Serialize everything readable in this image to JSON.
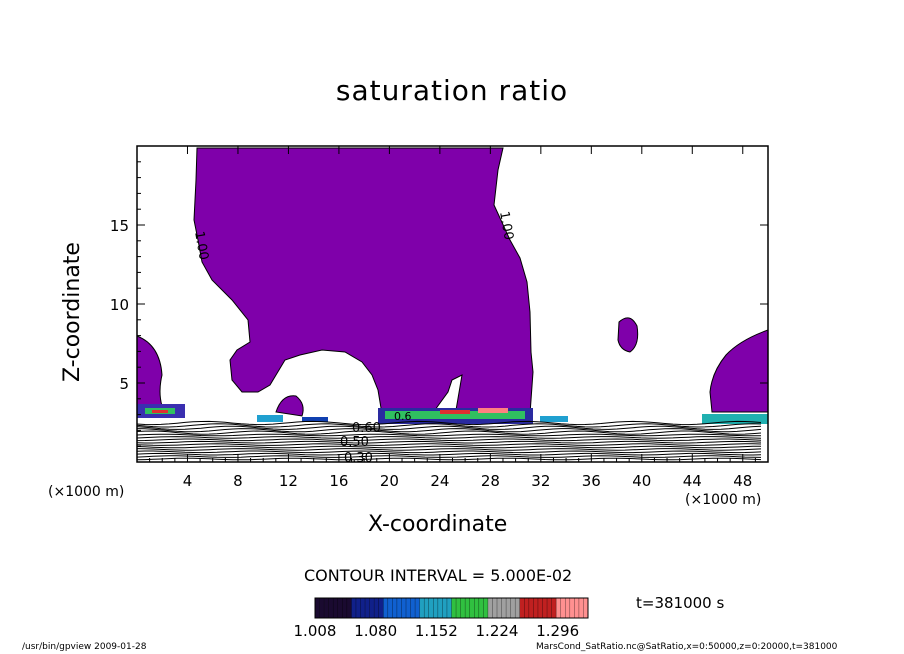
{
  "chart_data": {
    "type": "contour",
    "title": "saturation ratio",
    "xlabel": "X-coordinate",
    "ylabel": "Z-coordinate",
    "x_unit": "(×1000 m)",
    "y_unit": "(×1000 m)",
    "xlim": [
      0,
      50
    ],
    "ylim": [
      0,
      20
    ],
    "x_ticks": [
      4,
      8,
      12,
      16,
      20,
      24,
      28,
      32,
      36,
      40,
      44,
      48
    ],
    "y_ticks": [
      5,
      10,
      15
    ],
    "contour_interval": "CONTOUR INTERVAL = 5.000E-02",
    "time_label": "t=381000 s",
    "contour_labels": [
      "1.00",
      "1.00",
      "0.30",
      "0.50",
      "0.60",
      "0.6"
    ],
    "colorbar": {
      "ticks": [
        "1.008",
        "1.080",
        "1.152",
        "1.224",
        "1.296"
      ],
      "min": 1.008,
      "max": 1.332,
      "colors": [
        "#1a0a30",
        "#10208a",
        "#1060d0",
        "#20a0c0",
        "#30c040",
        "#a0a0a0",
        "#c02020",
        "#ff9090"
      ]
    },
    "fill_color": "#7f00aa"
  },
  "footer": {
    "left": "/usr/bin/gpview   2009-01-28",
    "right": "MarsCond_SatRatio.nc@SatRatio,x=0:50000,z=0:20000,t=381000"
  }
}
